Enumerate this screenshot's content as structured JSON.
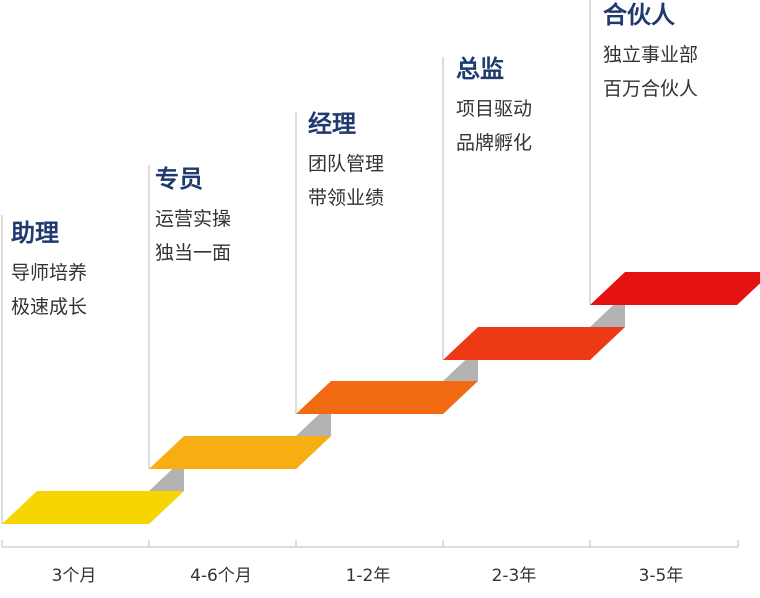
{
  "stages": [
    {
      "title": "助理",
      "lines": [
        "导师培养",
        "极速成长"
      ],
      "duration": "3个月",
      "color": "#f7d500"
    },
    {
      "title": "专员",
      "lines": [
        "运营实操",
        "独当一面"
      ],
      "duration": "4-6个月",
      "color": "#f6ae12"
    },
    {
      "title": "经理",
      "lines": [
        "团队管理",
        "带领业绩"
      ],
      "duration": "1-2年",
      "color": "#f26b12"
    },
    {
      "title": "总监",
      "lines": [
        "项目驱动",
        "品牌孵化"
      ],
      "duration": "2-3年",
      "color": "#ee3a14"
    },
    {
      "title": "合伙人",
      "lines": [
        "独立事业部",
        "百万合伙人"
      ],
      "duration": "3-5年",
      "color": "#e51212"
    }
  ],
  "riser_color": "#b3b3b3",
  "text_colors": {
    "title": "#1f3a6e",
    "body": "#333333"
  }
}
